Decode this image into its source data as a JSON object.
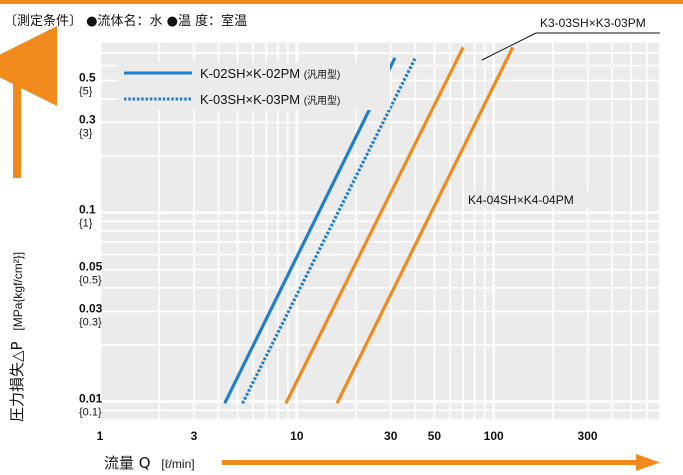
{
  "conditions": "〔測定条件〕 ●流体名：水 ●温 度：室温",
  "colors": {
    "blue": "#1f7fcb",
    "orange": "#f08a1c",
    "grid": "#c8c8c8",
    "plot_bg": "#ebebeb"
  },
  "chart_data": {
    "type": "line",
    "xscale": "log",
    "yscale": "log",
    "xlim": [
      1,
      700
    ],
    "ylim": [
      0.008,
      0.8
    ],
    "grid": true,
    "xlabel": "流量 Q",
    "xunit": "[ℓ/min]",
    "ylabel": "圧力損失△P",
    "yunit": "[MPa{kgf/cm²}]",
    "x_ticks": [
      {
        "value": 1,
        "label": "1"
      },
      {
        "value": 3,
        "label": "3"
      },
      {
        "value": 10,
        "label": "10"
      },
      {
        "value": 30,
        "label": "30"
      },
      {
        "value": 50,
        "label": "50"
      },
      {
        "value": 100,
        "label": "100"
      },
      {
        "value": 300,
        "label": "300"
      }
    ],
    "y_ticks": [
      {
        "value": 0.5,
        "label": "0.5",
        "sub": "{5}"
      },
      {
        "value": 0.3,
        "label": "0.3",
        "sub": "{3}"
      },
      {
        "value": 0.1,
        "label": "0.1",
        "sub": "{1}"
      },
      {
        "value": 0.05,
        "label": "0.05",
        "sub": "{0.5}"
      },
      {
        "value": 0.03,
        "label": "0.03",
        "sub": "{0.3}"
      },
      {
        "value": 0.01,
        "label": "0.01",
        "sub": "{0.1}"
      }
    ],
    "series": [
      {
        "name": "K-02SH×K-02PM",
        "note": "(汎用型)",
        "color": "#1f7fcb",
        "style": "solid",
        "x": [
          4.3,
          31.5
        ],
        "y": [
          0.0098,
          0.66
        ]
      },
      {
        "name": "K-03SH×K-03PM",
        "note": "(汎用型)",
        "color": "#1f7fcb",
        "style": "dotted",
        "x": [
          5.3,
          40
        ],
        "y": [
          0.0098,
          0.66
        ]
      },
      {
        "name": "K3-03SH×K3-03PM",
        "note": "",
        "color": "#f08a1c",
        "style": "solid",
        "x": [
          8.8,
          70
        ],
        "y": [
          0.0098,
          0.75
        ]
      },
      {
        "name": "K4-04SH×K4-04PM",
        "note": "",
        "color": "#f08a1c",
        "style": "solid",
        "x": [
          16,
          125
        ],
        "y": [
          0.0098,
          0.75
        ]
      }
    ],
    "legend": {
      "placement": "top-left",
      "entries": [
        0,
        1
      ]
    },
    "annotations": [
      {
        "text": "K3-03SH×K3-03PM",
        "series": 2
      },
      {
        "text": "K4-04SH×K4-04PM",
        "series": 3
      }
    ]
  }
}
